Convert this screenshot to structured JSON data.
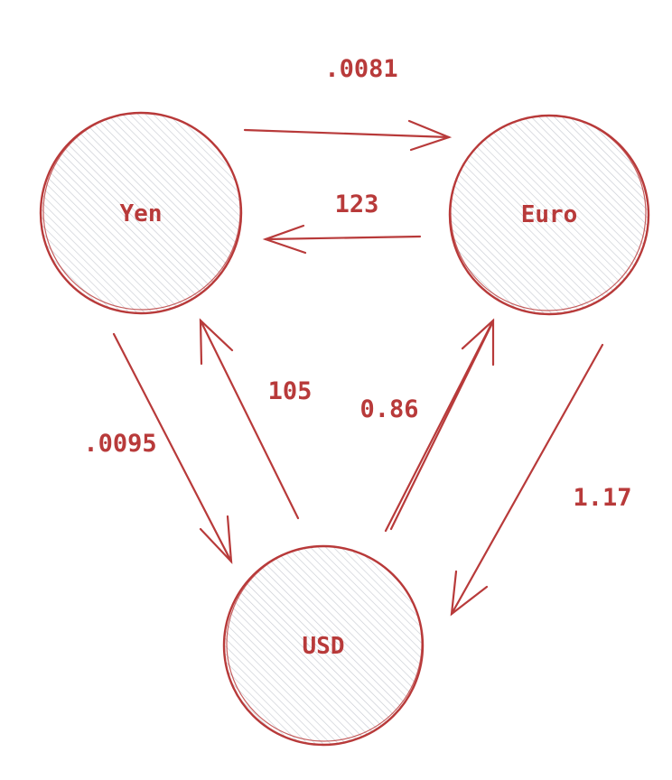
{
  "diagram": {
    "colors": {
      "stroke": "#b83a3a",
      "hatch": "#c9ccd3",
      "text": "#b83a3a"
    },
    "nodes": {
      "yen": {
        "label": "Yen"
      },
      "euro": {
        "label": "Euro"
      },
      "usd": {
        "label": "USD"
      }
    },
    "edges": {
      "yen_to_euro": {
        "label": ".0081"
      },
      "euro_to_yen": {
        "label": "123"
      },
      "yen_to_usd": {
        "label": ".0095"
      },
      "usd_to_yen": {
        "label": "105"
      },
      "usd_to_euro": {
        "label": "0.86"
      },
      "euro_to_usd": {
        "label": "1.17"
      }
    }
  }
}
